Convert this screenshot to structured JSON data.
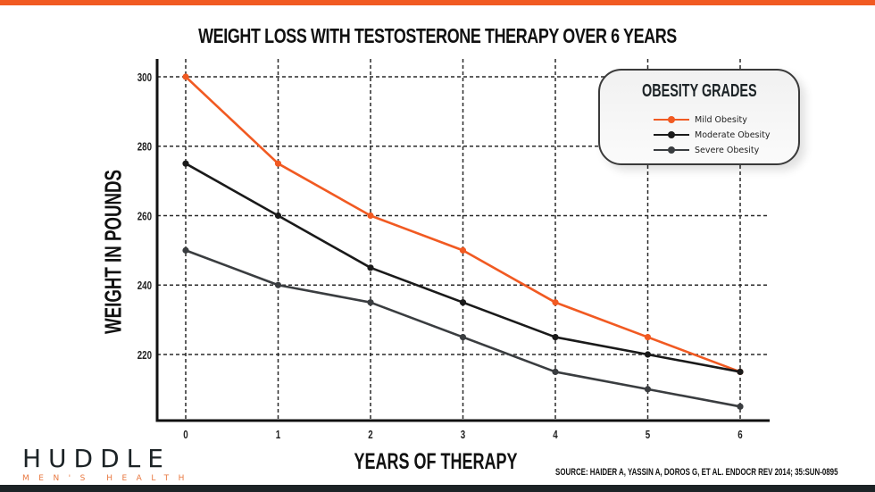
{
  "brand": {
    "name": "HUDDLE",
    "subtitle": "MEN'S HEALTH",
    "accent": "#f15a22",
    "dark": "#1c2326"
  },
  "source": "SOURCE: HAIDER A, YASSIN A, DOROS G, ET AL. ENDOCR REV 2014; 35:SUN-0895",
  "chart_data": {
    "type": "line",
    "title": "WEIGHT LOSS WITH TESTOSTERONE THERAPY OVER 6 YEARS",
    "xlabel": "YEARS OF THERAPY",
    "ylabel": "WEIGHT IN POUNDS",
    "x": [
      0,
      1,
      2,
      3,
      4,
      5,
      6
    ],
    "x_ticks": [
      "0",
      "1",
      "2",
      "3",
      "4",
      "5",
      "6"
    ],
    "y_ticks": [
      "300",
      "280",
      "260",
      "240",
      "220"
    ],
    "y_tick_values": [
      300,
      280,
      260,
      240,
      220
    ],
    "ylim": [
      200,
      305
    ],
    "xlim": [
      -0.3,
      6.3
    ],
    "grid": true,
    "legend": {
      "title": "OBESITY GRADES",
      "placement": "top-right"
    },
    "series": [
      {
        "name": "Mild Obesity",
        "color": "#f15a22",
        "values": [
          300,
          275,
          260,
          250,
          235,
          225,
          215
        ]
      },
      {
        "name": "Moderate Obesity",
        "color": "#1a1a1a",
        "values": [
          275,
          260,
          245,
          235,
          225,
          220,
          215
        ]
      },
      {
        "name": "Severe Obesity",
        "color": "#3a3d40",
        "values": [
          250,
          240,
          235,
          225,
          215,
          210,
          205
        ]
      }
    ]
  }
}
